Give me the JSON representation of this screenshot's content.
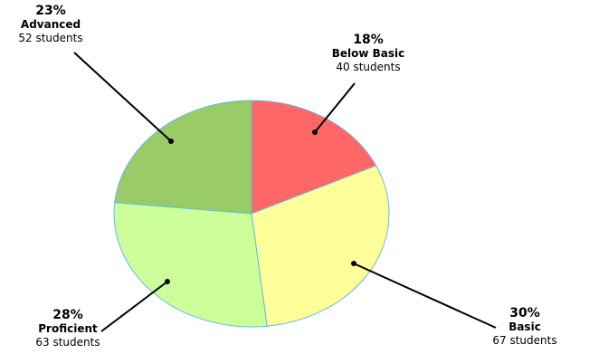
{
  "chart_data": {
    "type": "pie",
    "title": "",
    "legend": "none",
    "slices": [
      {
        "label": "Below Basic",
        "percent_label": "18%",
        "count_label": "40 students",
        "value": 40,
        "color": "#ff6666"
      },
      {
        "label": "Basic",
        "percent_label": "30%",
        "count_label": "67 students",
        "value": 67,
        "color": "#ffff99"
      },
      {
        "label": "Proficient",
        "percent_label": "28%",
        "count_label": "63 students",
        "value": 63,
        "color": "#ccff99"
      },
      {
        "label": "Advanced",
        "percent_label": "23%",
        "count_label": "52 students",
        "value": 52,
        "color": "#99cc66"
      }
    ],
    "slice_border_color": "#66bbdd",
    "leader_color": "#000000"
  }
}
